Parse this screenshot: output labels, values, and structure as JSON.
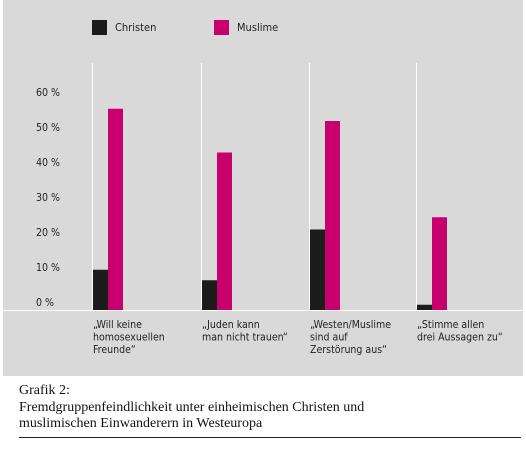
{
  "colors": {
    "christen": "#1c1c1c",
    "muslime": "#c8006e",
    "panel": "#d9d9d9",
    "grid": "#ffffff"
  },
  "caption": {
    "title": "Grafik 2:",
    "line1": "Fremdgruppenfeindlichkeit unter einheimischen Christen und",
    "line2": "muslimischen Einwanderern in Westeuropa"
  },
  "chart_data": {
    "type": "bar",
    "categories": [
      [
        "„Will keine",
        "homosexuellen",
        "Freunde“"
      ],
      [
        "„Juden kann",
        "man nicht trauen“"
      ],
      [
        "„Westen/Muslime",
        "sind auf",
        "Zerstörung aus“"
      ],
      [
        "„Stimme allen",
        "drei Aussagen zu“"
      ]
    ],
    "series": [
      {
        "name": "Christen",
        "color": "#1c1c1c",
        "values": [
          11.5,
          8.5,
          23,
          1.5
        ]
      },
      {
        "name": "Muslime",
        "color": "#c8006e",
        "values": [
          57.5,
          45,
          54,
          26.5
        ]
      }
    ],
    "yticks": [
      "0 %",
      "10 %",
      "20 %",
      "30 %",
      "40 %",
      "50 %",
      "60 %"
    ],
    "ylim": [
      0,
      60
    ],
    "legend_position": "top-left",
    "grid": true
  }
}
